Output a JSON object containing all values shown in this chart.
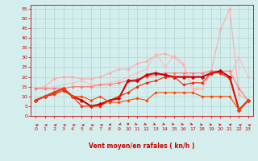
{
  "x": [
    0,
    1,
    2,
    3,
    4,
    5,
    6,
    7,
    8,
    9,
    10,
    11,
    12,
    13,
    14,
    15,
    16,
    17,
    18,
    19,
    20,
    21,
    22,
    23
  ],
  "series": [
    {
      "name": "line_light1",
      "color": "#ffaaaa",
      "linewidth": 0.8,
      "marker": "D",
      "markersize": 1.8,
      "values": [
        14,
        15,
        19,
        20,
        20,
        19,
        19,
        20,
        22,
        24,
        24,
        27,
        28,
        31,
        32,
        30,
        26,
        14,
        14,
        23,
        44,
        55,
        11,
        8
      ]
    },
    {
      "name": "line_light2",
      "color": "#ffbbbb",
      "linewidth": 0.8,
      "marker": "D",
      "markersize": 1.8,
      "values": [
        14,
        14,
        15,
        16,
        17,
        18,
        16,
        16,
        17,
        18,
        20,
        22,
        24,
        32,
        25,
        31,
        27,
        13,
        14,
        22,
        23,
        20,
        30,
        20
      ]
    },
    {
      "name": "line_mid1",
      "color": "#ff7777",
      "linewidth": 0.8,
      "marker": "D",
      "markersize": 1.8,
      "values": [
        14,
        14,
        14,
        14,
        15,
        15,
        15,
        16,
        16,
        17,
        18,
        19,
        20,
        21,
        22,
        22,
        22,
        22,
        22,
        23,
        23,
        23,
        14,
        8
      ]
    },
    {
      "name": "line_dark_thick",
      "color": "#cc0000",
      "linewidth": 1.5,
      "marker": "D",
      "markersize": 2.5,
      "values": [
        8,
        10,
        12,
        14,
        10,
        8,
        5,
        6,
        8,
        9,
        18,
        18,
        21,
        22,
        21,
        20,
        20,
        20,
        20,
        22,
        23,
        20,
        3,
        8
      ]
    },
    {
      "name": "line_dark2",
      "color": "#ee2200",
      "linewidth": 0.8,
      "marker": "D",
      "markersize": 1.8,
      "values": [
        8,
        10,
        11,
        13,
        10,
        5,
        5,
        5,
        8,
        10,
        12,
        15,
        17,
        18,
        20,
        20,
        16,
        17,
        17,
        22,
        22,
        19,
        3,
        8
      ]
    },
    {
      "name": "line_orange",
      "color": "#ff4400",
      "linewidth": 0.8,
      "marker": "D",
      "markersize": 1.8,
      "values": [
        8,
        10,
        12,
        14,
        10,
        10,
        8,
        10,
        7,
        7,
        8,
        9,
        8,
        12,
        12,
        12,
        12,
        12,
        10,
        10,
        10,
        10,
        3,
        8
      ]
    }
  ],
  "xlabel": "Vent moyen/en rafales ( kn/h )",
  "xlim": [
    -0.5,
    23.5
  ],
  "ylim": [
    0,
    57
  ],
  "yticks": [
    0,
    5,
    10,
    15,
    20,
    25,
    30,
    35,
    40,
    45,
    50,
    55
  ],
  "xticks": [
    0,
    1,
    2,
    3,
    4,
    5,
    6,
    7,
    8,
    9,
    10,
    11,
    12,
    13,
    14,
    15,
    16,
    17,
    18,
    19,
    20,
    21,
    22,
    23
  ],
  "background_color": "#d4eeee",
  "grid_color": "#aacccc",
  "axis_color": "#cc0000",
  "label_color": "#cc0000",
  "tick_color": "#cc0000",
  "arrow_dirs": [
    225,
    225,
    225,
    225,
    225,
    225,
    225,
    225,
    270,
    315,
    0,
    45,
    45,
    45,
    45,
    45,
    45,
    45,
    90,
    90,
    90,
    270,
    225,
    225
  ]
}
